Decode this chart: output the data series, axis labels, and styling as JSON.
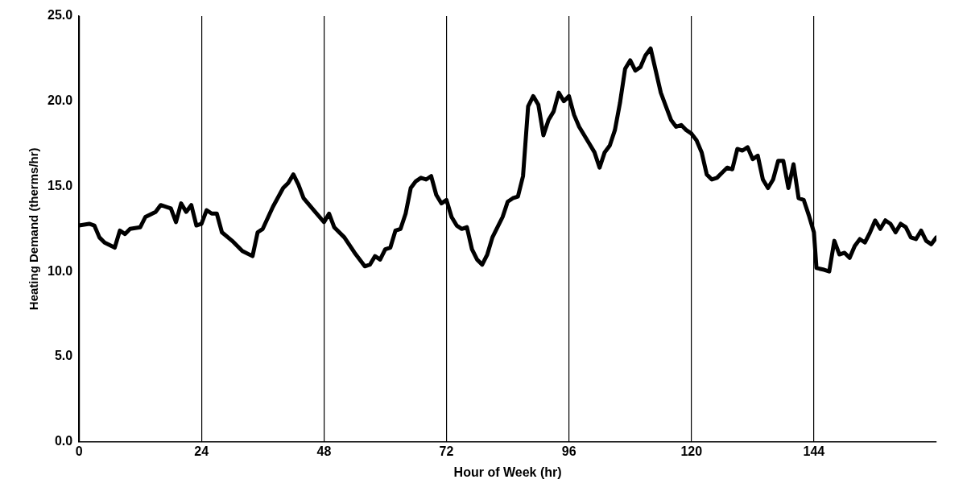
{
  "chart_data": {
    "type": "line",
    "xlabel": "Hour of Week (hr)",
    "ylabel": "Heating Demand (therms/hr)",
    "x": [
      0,
      2,
      3,
      4,
      5,
      7,
      8,
      9,
      10,
      12,
      13,
      15,
      16,
      18,
      19,
      20,
      21,
      22,
      23,
      24,
      25,
      26,
      27,
      28,
      30,
      32,
      34,
      35,
      36,
      38,
      40,
      41,
      42,
      43,
      44,
      46,
      48,
      49,
      50,
      52,
      54,
      56,
      57,
      58,
      59,
      60,
      61,
      62,
      63,
      64,
      65,
      66,
      67,
      68,
      69,
      70,
      71,
      72,
      73,
      74,
      75,
      76,
      77,
      78,
      79,
      80,
      81,
      82,
      83,
      84,
      85,
      86,
      87,
      88,
      89,
      90,
      91,
      92,
      93,
      94,
      95,
      96,
      97,
      98,
      100,
      101,
      102,
      103,
      104,
      105,
      106,
      107,
      108,
      109,
      110,
      111,
      112,
      113,
      114,
      115,
      116,
      117,
      118,
      119,
      120,
      121,
      122,
      123,
      124,
      125,
      126,
      127,
      128,
      129,
      130,
      131,
      132,
      133,
      134,
      135,
      136,
      137,
      138,
      139,
      140,
      141,
      142,
      143,
      144,
      144.5,
      146,
      147,
      148,
      149,
      150,
      151,
      152,
      153,
      154,
      155,
      156,
      157,
      158,
      159,
      160,
      161,
      162,
      163,
      164,
      165,
      166,
      167,
      168
    ],
    "series": [
      {
        "color": "#000000",
        "values": [
          12.7,
          12.8,
          12.7,
          12.0,
          11.7,
          11.4,
          12.4,
          12.2,
          12.5,
          12.6,
          13.2,
          13.5,
          13.9,
          13.7,
          12.9,
          14.0,
          13.5,
          13.9,
          12.7,
          12.8,
          13.6,
          13.4,
          13.4,
          12.3,
          11.8,
          11.2,
          10.9,
          12.3,
          12.5,
          13.8,
          14.9,
          15.2,
          15.7,
          15.1,
          14.3,
          13.6,
          12.9,
          13.4,
          12.6,
          12.0,
          11.1,
          10.3,
          10.4,
          10.9,
          10.7,
          11.3,
          11.4,
          12.4,
          12.5,
          13.4,
          14.9,
          15.3,
          15.5,
          15.4,
          15.6,
          14.5,
          14.0,
          14.2,
          13.2,
          12.7,
          12.5,
          12.6,
          11.3,
          10.7,
          10.4,
          11.0,
          12.0,
          12.6,
          13.2,
          14.1,
          14.3,
          14.4,
          15.6,
          19.7,
          20.3,
          19.8,
          18.0,
          18.9,
          19.4,
          20.5,
          20.0,
          20.3,
          19.2,
          18.5,
          17.5,
          17.0,
          16.1,
          17.0,
          17.4,
          18.3,
          19.9,
          21.9,
          22.4,
          21.8,
          22.0,
          22.7,
          23.1,
          21.8,
          20.5,
          19.7,
          18.9,
          18.5,
          18.6,
          18.3,
          18.1,
          17.7,
          17.0,
          15.7,
          15.4,
          15.5,
          15.8,
          16.1,
          16.0,
          17.2,
          17.1,
          17.3,
          16.6,
          16.8,
          15.4,
          14.9,
          15.4,
          16.5,
          16.5,
          14.9,
          16.3,
          14.3,
          14.2,
          13.3,
          12.3,
          10.2,
          10.1,
          10.0,
          11.8,
          11.0,
          11.1,
          10.8,
          11.5,
          11.9,
          11.7,
          12.3,
          13.0,
          12.5,
          13.0,
          12.8,
          12.3,
          12.8,
          12.6,
          12.0,
          11.9,
          12.4,
          11.8,
          11.6,
          12.0
        ]
      }
    ],
    "xlim": [
      0,
      168
    ],
    "xticks": [
      0,
      24,
      48,
      72,
      96,
      120,
      144
    ],
    "ylim": [
      0,
      25
    ],
    "yticks": [
      {
        "value": 0,
        "label": "0.0"
      },
      {
        "value": 5,
        "label": "5.0"
      },
      {
        "value": 10,
        "label": "10.0"
      },
      {
        "value": 15,
        "label": "15.0"
      },
      {
        "value": 20,
        "label": "20.0"
      },
      {
        "value": 25,
        "label": "25.0"
      }
    ],
    "grid": "x",
    "legend": false,
    "marker": "none",
    "line_style": "solid"
  }
}
